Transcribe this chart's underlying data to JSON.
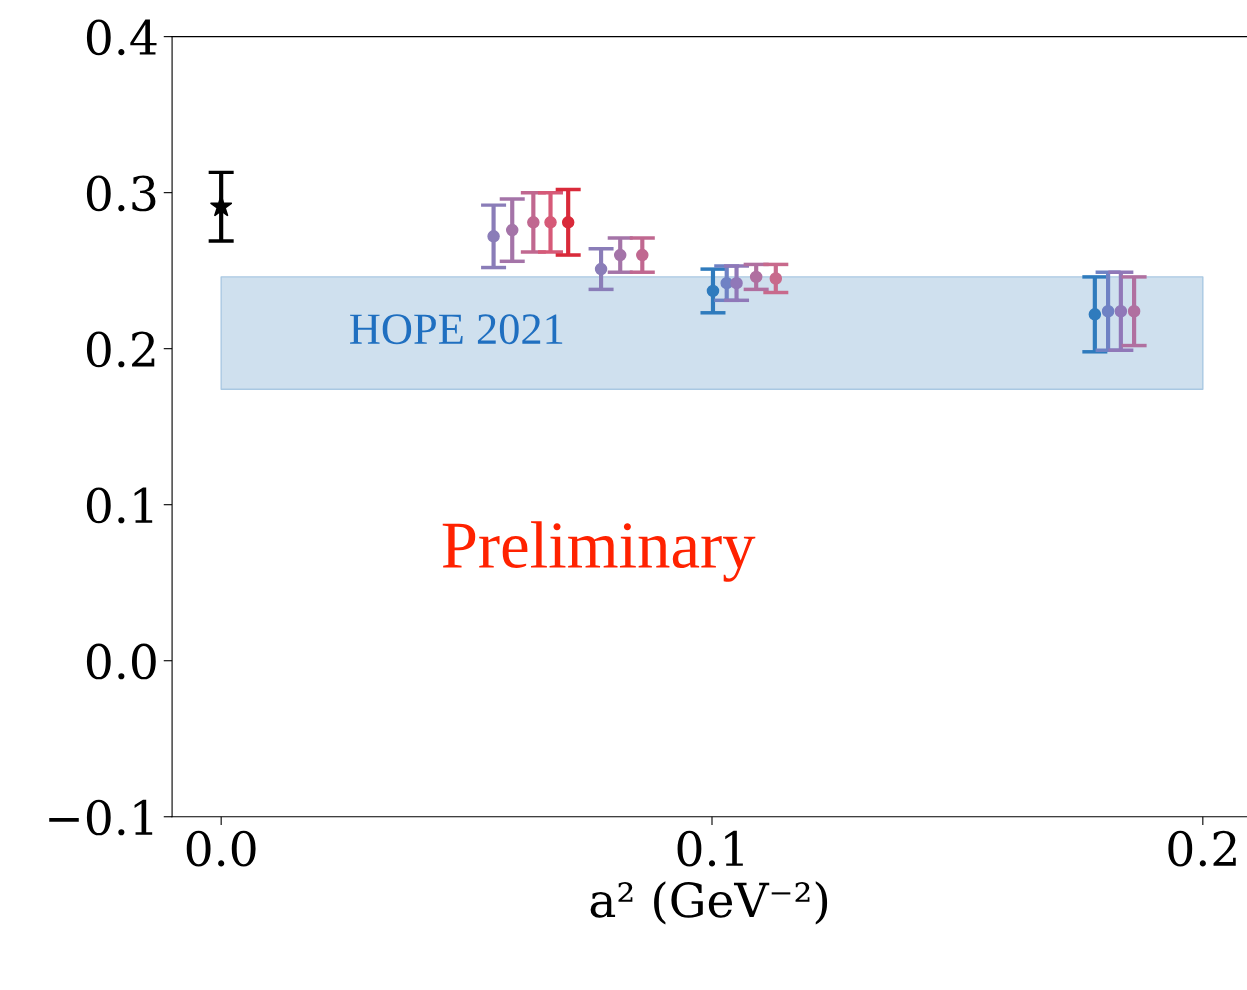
{
  "chart_data": {
    "type": "scatter",
    "xlabel": "a² (GeV⁻²)",
    "xlim": [
      -0.01,
      0.209
    ],
    "ylim": [
      -0.1,
      0.4
    ],
    "xticks": [
      {
        "value": 0.0,
        "label": "0.0"
      },
      0.1,
      0.2
    ],
    "yticks": [
      {
        "value": -0.1,
        "label": "−0.1"
      },
      {
        "value": 0.0,
        "label": "0.0"
      },
      0.1,
      0.2,
      0.3,
      0.4
    ],
    "grid": false,
    "legend": false,
    "marker": "circle",
    "bands": [
      {
        "axis": "y",
        "from": 0.174,
        "to": 0.246,
        "label": "HOPE 2021",
        "color": "#cfe0ee"
      }
    ],
    "annotations": [
      "Preliminary"
    ],
    "series": [
      {
        "color": "#000000",
        "marker": "star",
        "x": [
          0.0
        ],
        "values": [
          0.291
        ],
        "errors": [
          0.022
        ]
      },
      {
        "color": "#8a7db8",
        "x": [
          0.0555
        ],
        "values": [
          0.272
        ],
        "errors": [
          0.02
        ]
      },
      {
        "color": "#a474a8",
        "x": [
          0.0593
        ],
        "values": [
          0.276
        ],
        "errors": [
          0.02
        ]
      },
      {
        "color": "#c06890",
        "x": [
          0.0636
        ],
        "values": [
          0.281
        ],
        "errors": [
          0.019
        ]
      },
      {
        "color": "#d65a78",
        "x": [
          0.0671
        ],
        "values": [
          0.281
        ],
        "errors": [
          0.019
        ]
      },
      {
        "color": "#d92a3a",
        "x": [
          0.0707
        ],
        "values": [
          0.281
        ],
        "errors": [
          0.021
        ]
      },
      {
        "color": "#8a7db8",
        "x": [
          0.0774
        ],
        "values": [
          0.251
        ],
        "errors": [
          0.013
        ]
      },
      {
        "color": "#a474a8",
        "x": [
          0.0813
        ],
        "values": [
          0.26
        ],
        "errors": [
          0.011
        ]
      },
      {
        "color": "#c06890",
        "x": [
          0.0858
        ],
        "values": [
          0.26
        ],
        "errors": [
          0.011
        ]
      },
      {
        "color": "#2f7bbd",
        "x": [
          0.1002
        ],
        "values": [
          0.237
        ],
        "errors": [
          0.014
        ]
      },
      {
        "color": "#6f82c4",
        "x": [
          0.103
        ],
        "values": [
          0.242
        ],
        "errors": [
          0.011
        ]
      },
      {
        "color": "#9078b8",
        "x": [
          0.105
        ],
        "values": [
          0.242
        ],
        "errors": [
          0.011
        ]
      },
      {
        "color": "#b070a0",
        "x": [
          0.109
        ],
        "values": [
          0.246
        ],
        "errors": [
          0.008
        ]
      },
      {
        "color": "#c86a8c",
        "x": [
          0.113
        ],
        "values": [
          0.245
        ],
        "errors": [
          0.009
        ]
      },
      {
        "color": "#2f7bbd",
        "x": [
          0.178
        ],
        "values": [
          0.222
        ],
        "errors": [
          0.024
        ]
      },
      {
        "color": "#6f82c4",
        "x": [
          0.1807
        ],
        "values": [
          0.224
        ],
        "errors": [
          0.025
        ]
      },
      {
        "color": "#9078b8",
        "x": [
          0.1833
        ],
        "values": [
          0.224
        ],
        "errors": [
          0.025
        ]
      },
      {
        "color": "#b070a0",
        "x": [
          0.186
        ],
        "values": [
          0.224
        ],
        "errors": [
          0.022
        ]
      }
    ]
  }
}
